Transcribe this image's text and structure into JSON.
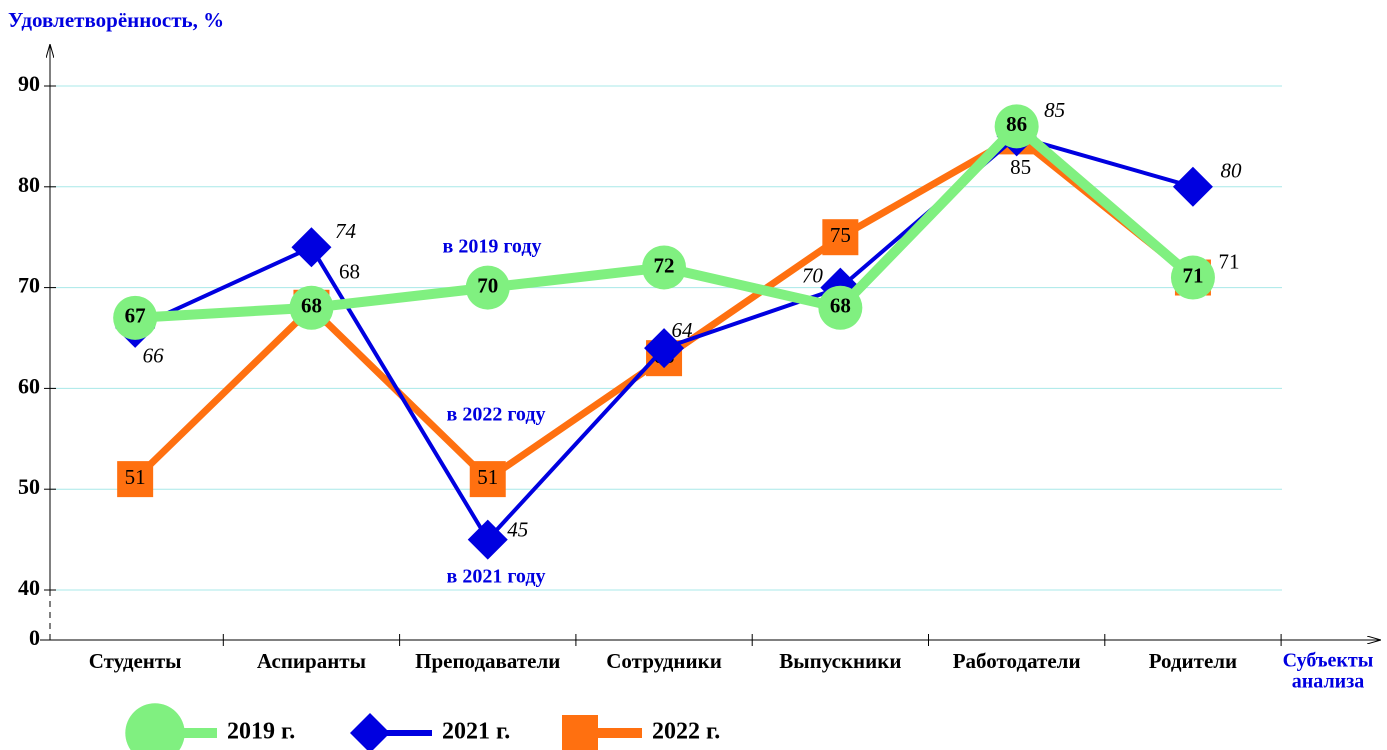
{
  "chart_data": {
    "type": "line",
    "ylabel": "Удовлетворённость, %",
    "xlabel": [
      "Субъекты",
      "анализа"
    ],
    "categories": [
      "Студенты",
      "Аспиранты",
      "Преподаватели",
      "Сотрудники",
      "Выпускники",
      "Работодатели",
      "Родители"
    ],
    "series": [
      {
        "name": "2022 г.",
        "color": "#ff7010",
        "marker": "square",
        "values": [
          51,
          68,
          51,
          63,
          75,
          85,
          71
        ]
      },
      {
        "name": "2021 г.",
        "color": "#0000e0",
        "marker": "diamond",
        "values": [
          66,
          74,
          45,
          64,
          70,
          85,
          80
        ]
      },
      {
        "name": "2019 г.",
        "color": "#80f080",
        "marker": "circle",
        "values": [
          67,
          68,
          70,
          72,
          68,
          86,
          71
        ]
      }
    ],
    "annotations": [
      "в 2019 году",
      "в 2022 году",
      "в 2021 году"
    ],
    "ylim": [
      0,
      90
    ],
    "axis_break": [
      0,
      40
    ],
    "yticks": [
      0,
      40,
      50,
      60,
      70,
      80,
      90
    ],
    "grid": true
  }
}
